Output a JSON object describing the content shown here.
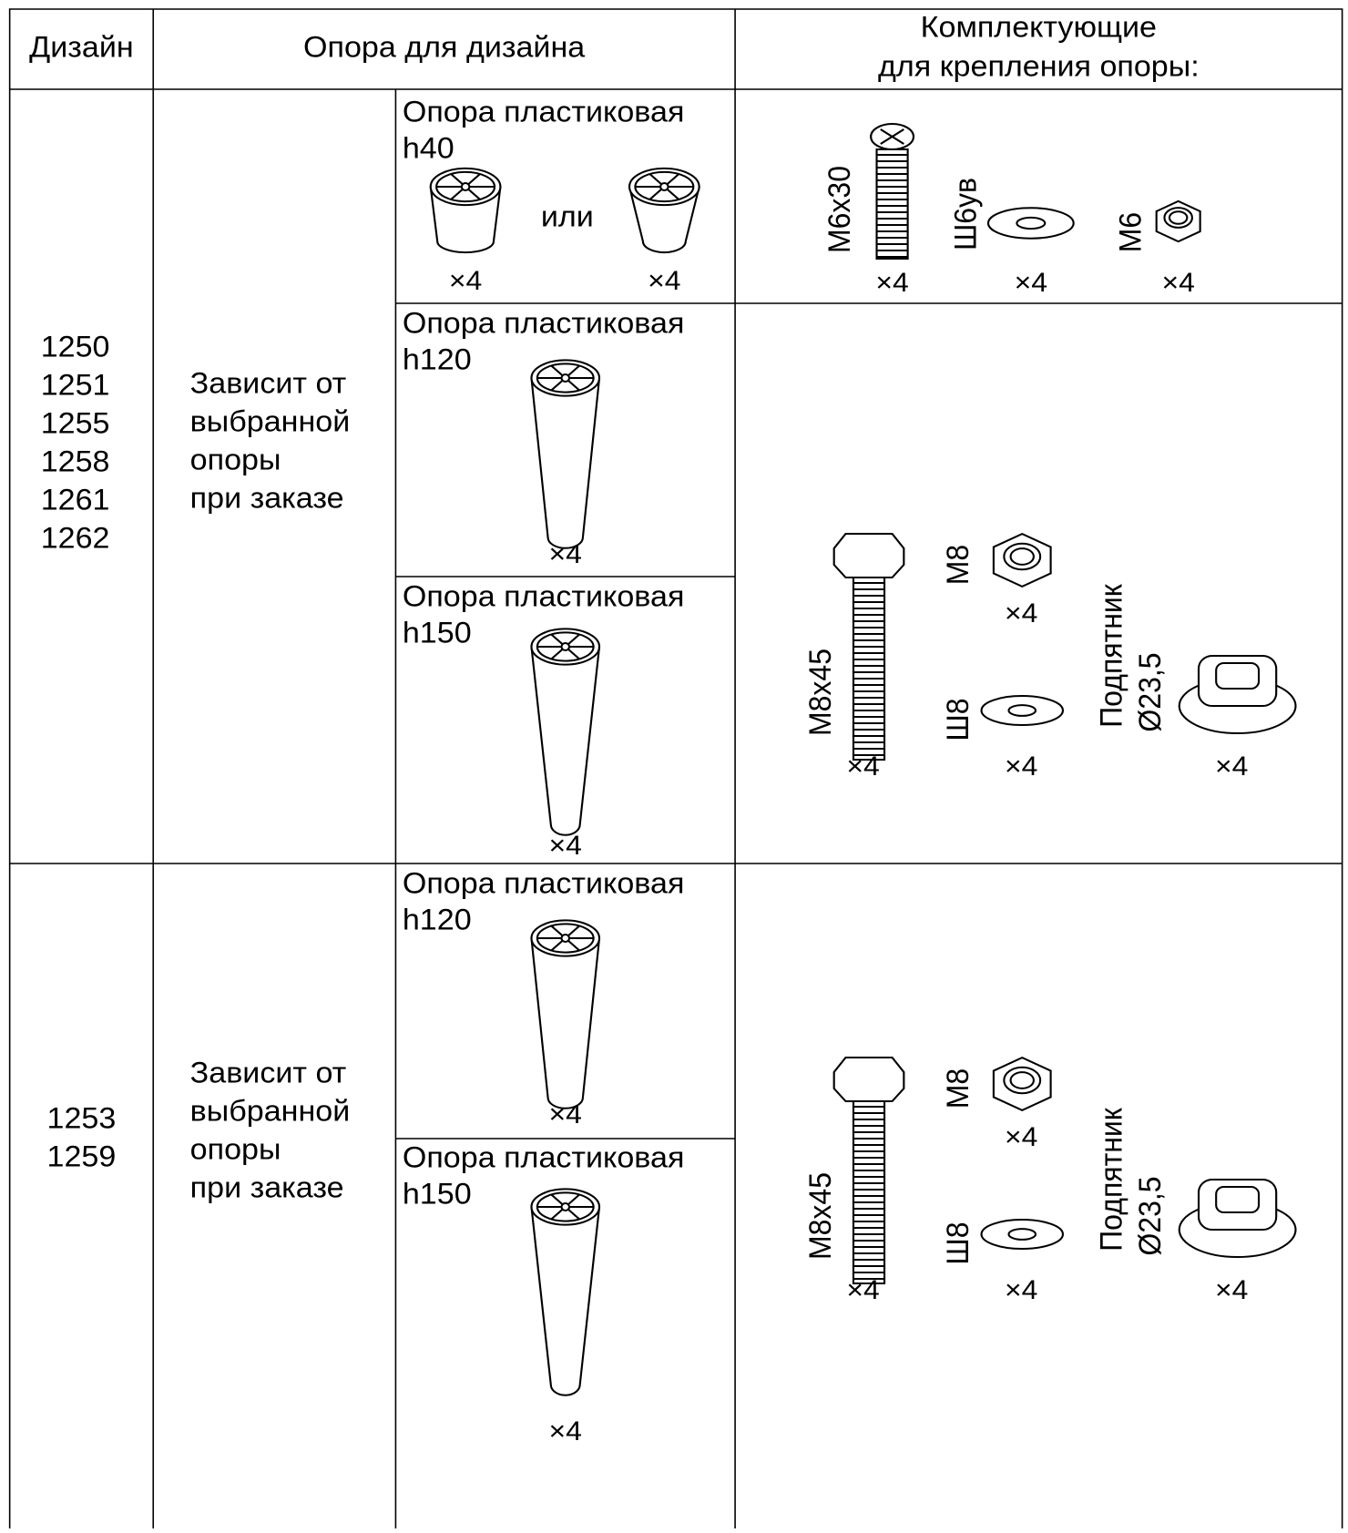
{
  "header": {
    "design": "Дизайн",
    "support": "Опора для дизайна",
    "fasteners": [
      "Комплектующие",
      "для крепления опоры:"
    ]
  },
  "groups": [
    {
      "designs": [
        "1250",
        "1251",
        "1255",
        "1258",
        "1261",
        "1262"
      ],
      "note": [
        "Зависит от",
        "выбранной",
        "опоры",
        "при заказе"
      ],
      "options": [
        {
          "title": [
            "Опора пластиковая",
            "h40"
          ],
          "or": "или",
          "qty": [
            "×4",
            "×4"
          ]
        },
        {
          "title": [
            "Опора пластиковая",
            "h120"
          ],
          "qty": [
            "×4"
          ]
        },
        {
          "title": [
            "Опора пластиковая",
            "h150"
          ],
          "qty": [
            "×4"
          ]
        }
      ],
      "fasteners": [
        {
          "items": [
            {
              "label": [
                "М6х30"
              ],
              "qty": "×4"
            },
            {
              "label": [
                "Ш6ув"
              ],
              "qty": "×4"
            },
            {
              "label": [
                "М6"
              ],
              "qty": "×4"
            }
          ]
        },
        {
          "items": [
            {
              "label": [
                "М8х45"
              ],
              "qty": "×4"
            },
            {
              "label": [
                "М8"
              ],
              "qty": "×4"
            },
            {
              "label": [
                "Ш8"
              ],
              "qty": "×4"
            },
            {
              "label": [
                "Подпятник",
                "Ø23,5"
              ],
              "qty": "×4"
            }
          ]
        }
      ]
    },
    {
      "designs": [
        "1253",
        "1259"
      ],
      "note": [
        "Зависит от",
        "выбранной",
        "опоры",
        "при заказе"
      ],
      "options": [
        {
          "title": [
            "Опора пластиковая",
            "h120"
          ],
          "qty": [
            "×4"
          ]
        },
        {
          "title": [
            "Опора пластиковая",
            "h150"
          ],
          "qty": [
            "×4"
          ]
        }
      ],
      "fasteners": [
        {
          "items": [
            {
              "label": [
                "М8х45"
              ],
              "qty": "×4"
            },
            {
              "label": [
                "М8"
              ],
              "qty": "×4"
            },
            {
              "label": [
                "Ш8"
              ],
              "qty": "×4"
            },
            {
              "label": [
                "Подпятник",
                "Ø23,5"
              ],
              "qty": "×4"
            }
          ]
        }
      ]
    }
  ]
}
